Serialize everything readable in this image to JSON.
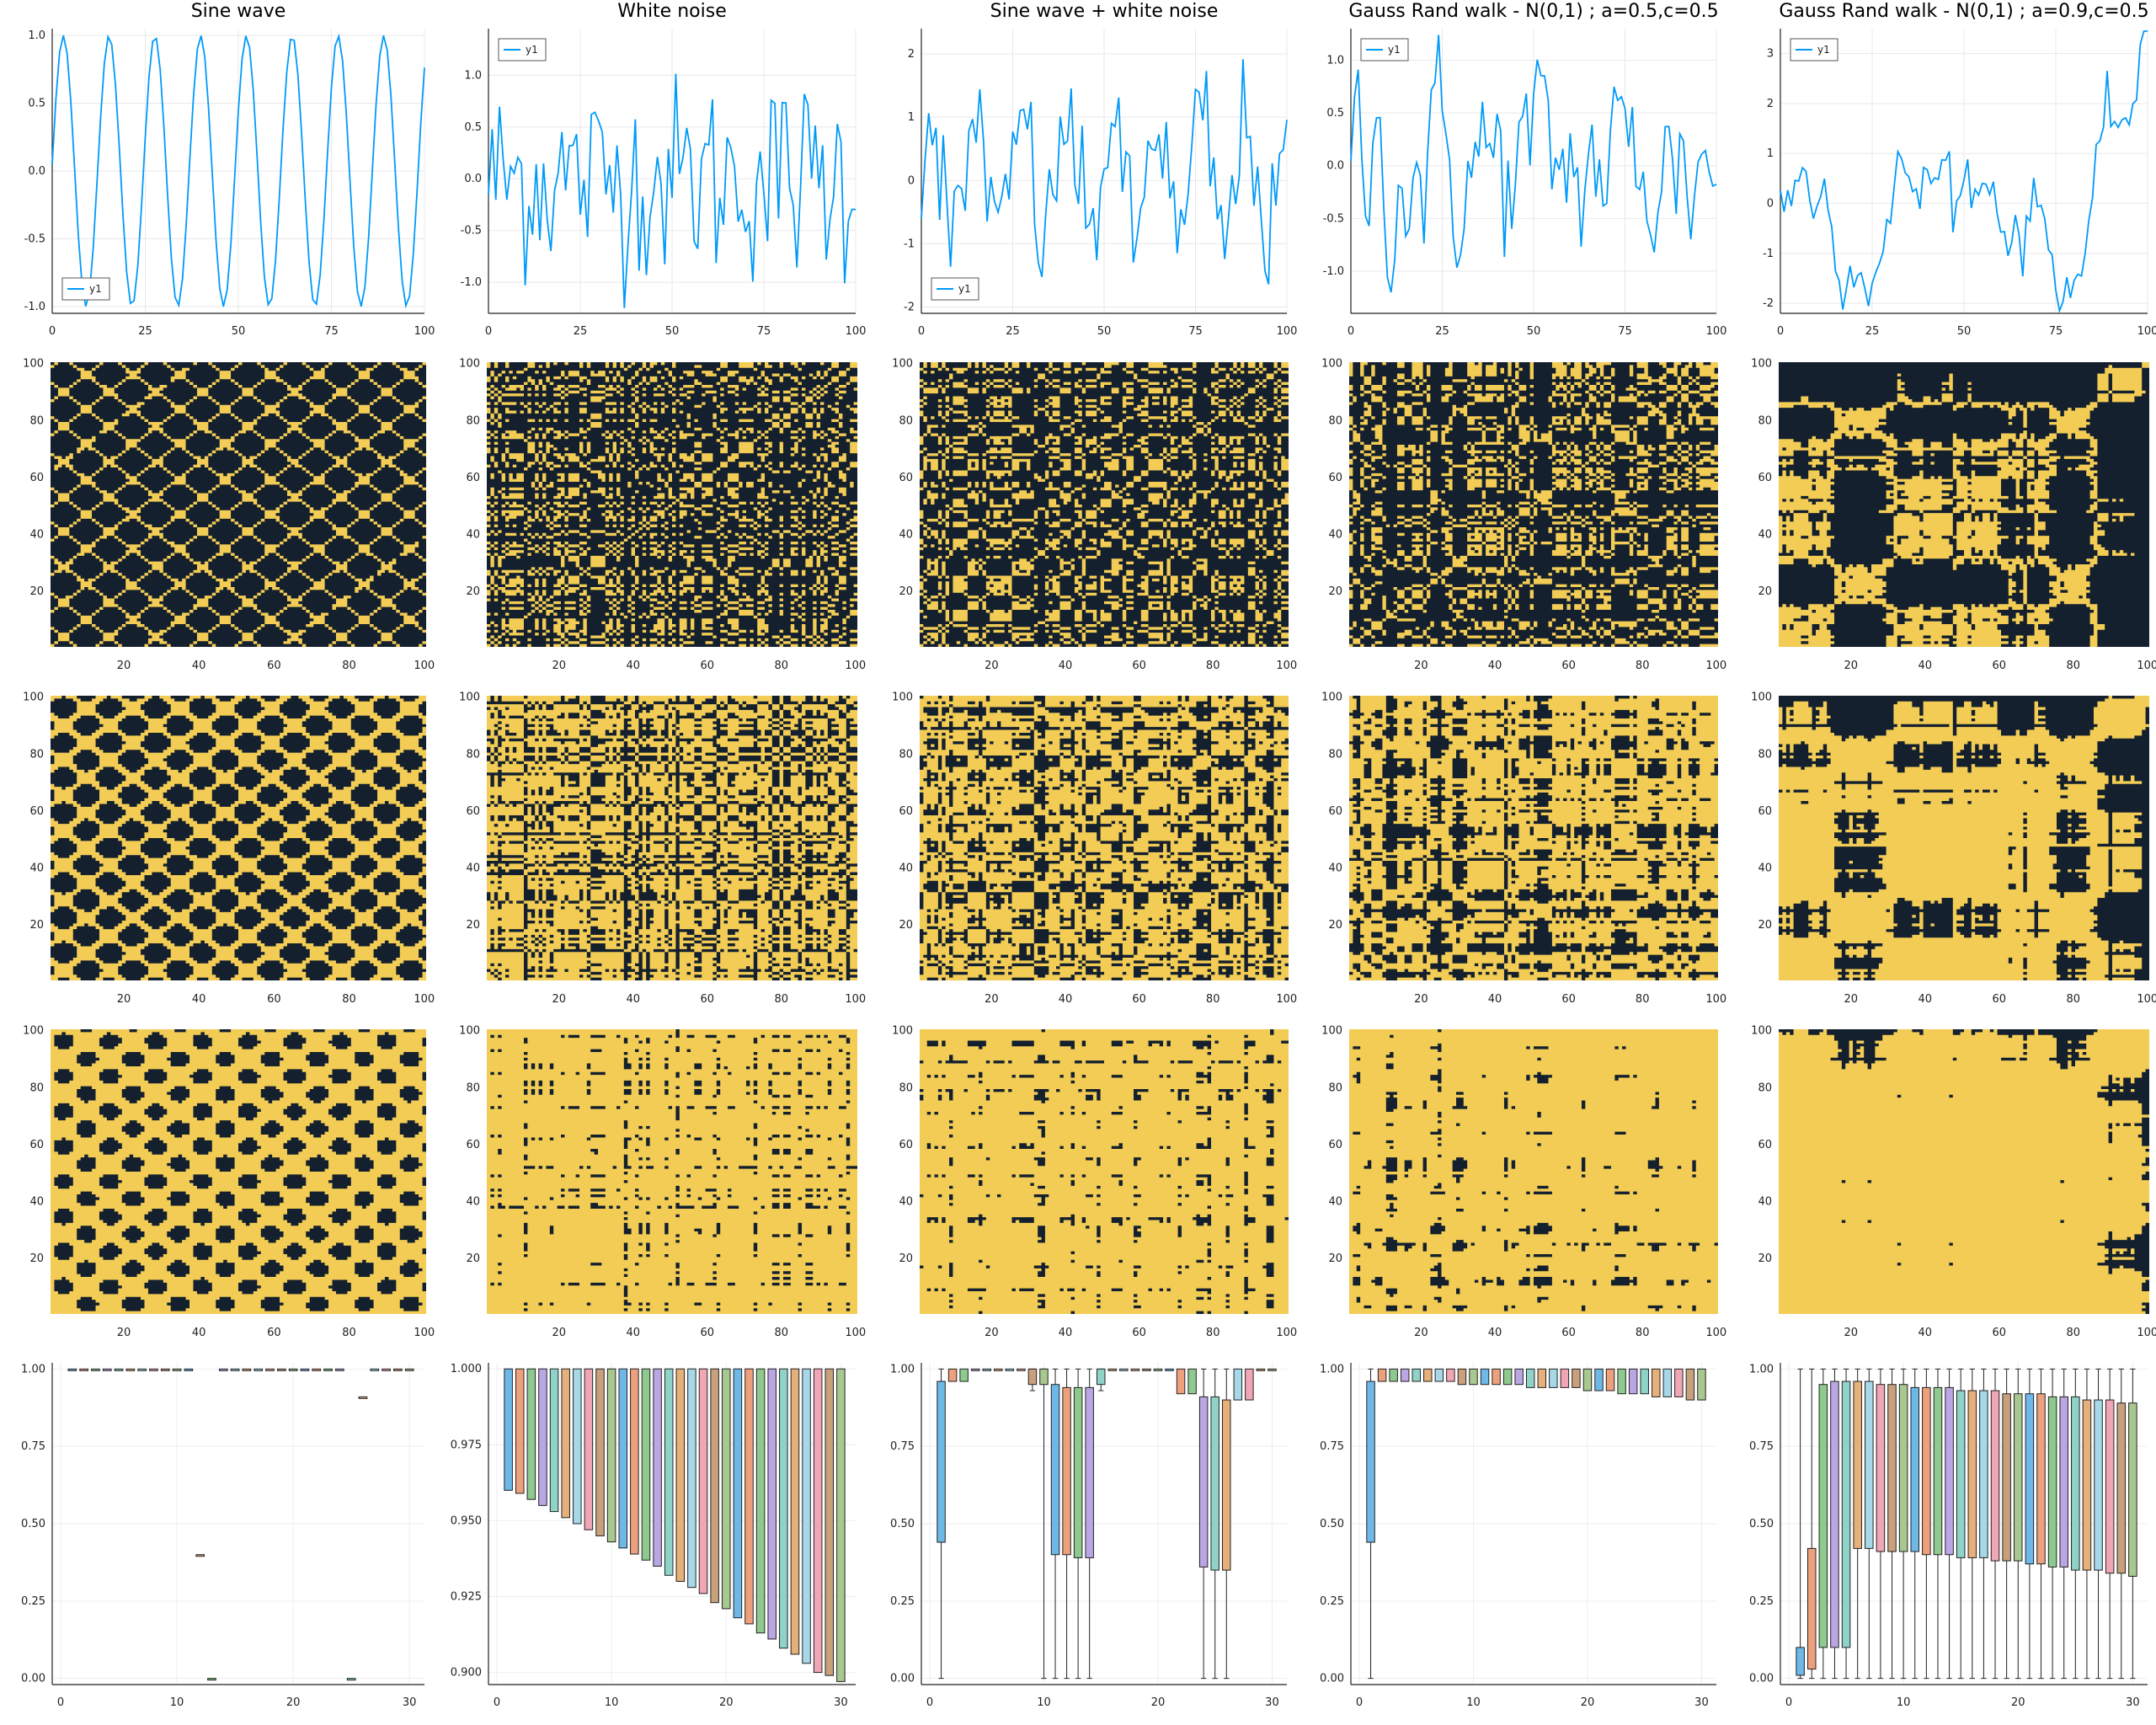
{
  "chart_data": [
    {
      "type": "line",
      "title": "Sine wave",
      "x": [
        0,
        100
      ],
      "ylim": [
        -1.05,
        1.05
      ],
      "xticks": [
        0,
        25,
        50,
        75,
        100
      ],
      "yticks": [
        -1.0,
        -0.5,
        0.0,
        0.5,
        1.0
      ],
      "legend": "bottom-left",
      "series": [
        {
          "name": "y1",
          "color": "#009AFA",
          "kind": "sine",
          "period": 12.3
        }
      ]
    },
    {
      "type": "line",
      "title": "White noise",
      "x": [
        0,
        100
      ],
      "ylim": [
        -1.3,
        1.45
      ],
      "xticks": [
        0,
        25,
        50,
        75,
        100
      ],
      "yticks": [
        -1.0,
        -0.5,
        0.0,
        0.5,
        1.0
      ],
      "legend": "top-left",
      "series": [
        {
          "name": "y1",
          "color": "#009AFA",
          "kind": "noise"
        }
      ]
    },
    {
      "type": "line",
      "title": "Sine wave + white noise",
      "x": [
        0,
        100
      ],
      "ylim": [
        -2.1,
        2.4
      ],
      "xticks": [
        0,
        25,
        50,
        75,
        100
      ],
      "yticks": [
        -2,
        -1,
        0,
        1,
        2
      ],
      "legend": "bottom-left",
      "series": [
        {
          "name": "y1",
          "color": "#009AFA",
          "kind": "sine+noise"
        }
      ]
    },
    {
      "type": "line",
      "title": "Gauss Rand walk - N(0,1) ; a=0.5,c=0.5",
      "x": [
        0,
        100
      ],
      "ylim": [
        -1.4,
        1.3
      ],
      "xticks": [
        0,
        25,
        50,
        75,
        100
      ],
      "yticks": [
        -1.0,
        -0.5,
        0.0,
        0.5,
        1.0
      ],
      "legend": "top-left",
      "series": [
        {
          "name": "y1",
          "color": "#009AFA",
          "kind": "walk05"
        }
      ]
    },
    {
      "type": "line",
      "title": "Gauss Rand walk - N(0,1) ; a=0.9,c=0.5",
      "x": [
        0,
        100
      ],
      "ylim": [
        -2.2,
        3.5
      ],
      "xticks": [
        0,
        25,
        50,
        75,
        100
      ],
      "yticks": [
        -2,
        -1,
        0,
        1,
        2,
        3
      ],
      "legend": "top-left",
      "series": [
        {
          "name": "y1",
          "color": "#009AFA",
          "kind": "walk09"
        }
      ]
    },
    {
      "type": "heatmap",
      "row": 2,
      "xticks": [
        20,
        40,
        60,
        80,
        100
      ],
      "yticks": [
        20,
        40,
        60,
        80,
        100
      ],
      "colors": [
        "#14202E",
        "#F2CC55"
      ]
    },
    {
      "type": "heatmap",
      "row": 3,
      "xticks": [
        20,
        40,
        60,
        80,
        100
      ],
      "yticks": [
        20,
        40,
        60,
        80,
        100
      ],
      "colors": [
        "#14202E",
        "#F2CC55"
      ]
    },
    {
      "type": "heatmap",
      "row": 4,
      "xticks": [
        20,
        40,
        60,
        80,
        100
      ],
      "yticks": [
        20,
        40,
        60,
        80,
        100
      ],
      "colors": [
        "#14202E",
        "#F2CC55"
      ]
    },
    {
      "type": "bar",
      "subtype": "boxplot",
      "panel": "Sine wave",
      "x": [
        0,
        30
      ],
      "xticks": [
        0,
        10,
        20,
        30
      ],
      "yticks": [
        0.0,
        0.25,
        0.5,
        0.75,
        1.0
      ],
      "ylim": [
        -0.02,
        1.02
      ],
      "boxes": [
        [
          0.998,
          1.0
        ],
        [
          0.998,
          1.0
        ],
        [
          0.998,
          1.0
        ],
        [
          0.998,
          1.0
        ],
        [
          0.998,
          1.0
        ],
        [
          0.998,
          1.0
        ],
        [
          0.998,
          1.0
        ],
        [
          0.998,
          1.0
        ],
        [
          0.998,
          1.0
        ],
        [
          0.998,
          1.0
        ],
        [
          0.998,
          1.0
        ],
        [
          0.4,
          0.4
        ],
        [
          0.0,
          0.0
        ],
        [
          0.998,
          1.0
        ],
        [
          0.998,
          1.0
        ],
        [
          0.998,
          1.0
        ],
        [
          0.998,
          1.0
        ],
        [
          0.998,
          1.0
        ],
        [
          0.998,
          1.0
        ],
        [
          0.998,
          1.0
        ],
        [
          0.998,
          1.0
        ],
        [
          0.998,
          1.0
        ],
        [
          0.998,
          1.0
        ],
        [
          0.998,
          1.0
        ],
        [
          0.0,
          0.0
        ],
        [
          0.91,
          0.91
        ],
        [
          0.998,
          1.0
        ],
        [
          0.998,
          1.0
        ],
        [
          0.998,
          1.0
        ],
        [
          0.998,
          1.0
        ]
      ]
    },
    {
      "type": "bar",
      "subtype": "boxplot",
      "panel": "White noise",
      "x": [
        0,
        30
      ],
      "xticks": [
        0,
        10,
        20,
        30
      ],
      "yticks": [
        0.9,
        0.925,
        0.95,
        0.975,
        1.0
      ],
      "ylim": [
        0.896,
        1.002
      ],
      "boxes": [
        [
          0.96,
          1.0
        ],
        [
          0.959,
          1.0
        ],
        [
          0.957,
          1.0
        ],
        [
          0.955,
          1.0
        ],
        [
          0.953,
          1.0
        ],
        [
          0.951,
          1.0
        ],
        [
          0.949,
          1.0
        ],
        [
          0.947,
          1.0
        ],
        [
          0.945,
          1.0
        ],
        [
          0.943,
          1.0
        ],
        [
          0.941,
          1.0
        ],
        [
          0.939,
          1.0
        ],
        [
          0.937,
          1.0
        ],
        [
          0.935,
          1.0
        ],
        [
          0.932,
          1.0
        ],
        [
          0.93,
          1.0
        ],
        [
          0.928,
          1.0
        ],
        [
          0.926,
          1.0
        ],
        [
          0.923,
          1.0
        ],
        [
          0.921,
          1.0
        ],
        [
          0.918,
          1.0
        ],
        [
          0.916,
          1.0
        ],
        [
          0.913,
          1.0
        ],
        [
          0.911,
          1.0
        ],
        [
          0.908,
          1.0
        ],
        [
          0.906,
          1.0
        ],
        [
          0.903,
          1.0
        ],
        [
          0.9,
          1.0
        ],
        [
          0.899,
          1.0
        ],
        [
          0.897,
          1.0
        ]
      ]
    },
    {
      "type": "bar",
      "subtype": "boxplot",
      "panel": "Sine wave + white noise",
      "x": [
        0,
        30
      ],
      "xticks": [
        0,
        10,
        20,
        30
      ],
      "yticks": [
        0.0,
        0.25,
        0.5,
        0.75,
        1.0
      ],
      "ylim": [
        -0.02,
        1.02
      ],
      "boxes": [
        [
          0.44,
          0.96,
          0.0
        ],
        [
          0.96,
          1.0
        ],
        [
          0.96,
          1.0
        ],
        [
          1.0,
          1.0
        ],
        [
          1.0,
          1.0
        ],
        [
          1.0,
          1.0
        ],
        [
          1.0,
          1.0
        ],
        [
          1.0,
          1.0
        ],
        [
          0.95,
          1.0,
          0.93
        ],
        [
          0.95,
          1.0,
          0.0
        ],
        [
          0.4,
          0.95,
          0.0
        ],
        [
          0.4,
          0.94,
          0.0
        ],
        [
          0.39,
          0.94,
          0.0
        ],
        [
          0.39,
          0.94,
          0.0
        ],
        [
          0.95,
          1.0,
          0.93
        ],
        [
          1.0,
          1.0
        ],
        [
          1.0,
          1.0
        ],
        [
          1.0,
          1.0
        ],
        [
          1.0,
          1.0
        ],
        [
          1.0,
          1.0
        ],
        [
          1.0,
          1.0
        ],
        [
          0.92,
          1.0
        ],
        [
          0.92,
          1.0
        ],
        [
          0.36,
          0.91,
          0.0
        ],
        [
          0.35,
          0.91,
          0.0
        ],
        [
          0.35,
          0.9,
          0.0
        ],
        [
          0.9,
          1.0
        ],
        [
          0.9,
          1.0
        ],
        [
          1.0,
          1.0
        ],
        [
          1.0,
          1.0
        ]
      ]
    },
    {
      "type": "bar",
      "subtype": "boxplot",
      "panel": "Gauss Rand walk - N(0,1) ; a=0.5,c=0.5",
      "x": [
        0,
        30
      ],
      "xticks": [
        0,
        10,
        20,
        30
      ],
      "yticks": [
        0.0,
        0.25,
        0.5,
        0.75,
        1.0
      ],
      "ylim": [
        -0.02,
        1.02
      ],
      "boxes": [
        [
          0.44,
          0.96,
          0.0
        ],
        [
          0.96,
          1.0
        ],
        [
          0.96,
          1.0
        ],
        [
          0.96,
          1.0
        ],
        [
          0.96,
          1.0
        ],
        [
          0.96,
          1.0
        ],
        [
          0.96,
          1.0
        ],
        [
          0.96,
          1.0
        ],
        [
          0.95,
          1.0
        ],
        [
          0.95,
          1.0
        ],
        [
          0.95,
          1.0
        ],
        [
          0.95,
          1.0
        ],
        [
          0.95,
          1.0
        ],
        [
          0.95,
          1.0
        ],
        [
          0.94,
          1.0
        ],
        [
          0.94,
          1.0
        ],
        [
          0.94,
          1.0
        ],
        [
          0.94,
          1.0
        ],
        [
          0.94,
          1.0
        ],
        [
          0.93,
          1.0
        ],
        [
          0.93,
          1.0
        ],
        [
          0.93,
          1.0
        ],
        [
          0.92,
          1.0
        ],
        [
          0.92,
          1.0
        ],
        [
          0.92,
          1.0
        ],
        [
          0.91,
          1.0
        ],
        [
          0.91,
          1.0
        ],
        [
          0.91,
          1.0
        ],
        [
          0.9,
          1.0
        ],
        [
          0.9,
          1.0
        ]
      ]
    },
    {
      "type": "bar",
      "subtype": "boxplot",
      "panel": "Gauss Rand walk - N(0,1) ; a=0.9,c=0.5",
      "x": [
        0,
        30
      ],
      "xticks": [
        0,
        10,
        20,
        30
      ],
      "yticks": [
        0.0,
        0.25,
        0.5,
        0.75,
        1.0
      ],
      "ylim": [
        -0.02,
        1.02
      ],
      "boxes": [
        [
          0.01,
          0.1,
          0.0
        ],
        [
          0.03,
          0.42,
          0.0
        ],
        [
          0.1,
          0.95,
          0.0
        ],
        [
          0.1,
          0.96,
          0.0
        ],
        [
          0.1,
          0.96,
          0.0
        ],
        [
          0.42,
          0.96,
          0.0
        ],
        [
          0.42,
          0.96,
          0.0
        ],
        [
          0.41,
          0.95,
          0.0
        ],
        [
          0.41,
          0.95,
          0.0
        ],
        [
          0.41,
          0.95,
          0.0
        ],
        [
          0.41,
          0.94,
          0.0
        ],
        [
          0.4,
          0.94,
          0.0
        ],
        [
          0.4,
          0.94,
          0.0
        ],
        [
          0.4,
          0.94,
          0.0
        ],
        [
          0.39,
          0.93,
          0.0
        ],
        [
          0.39,
          0.93,
          0.0
        ],
        [
          0.39,
          0.93,
          0.0
        ],
        [
          0.38,
          0.93,
          0.0
        ],
        [
          0.38,
          0.92,
          0.0
        ],
        [
          0.38,
          0.92,
          0.0
        ],
        [
          0.37,
          0.92,
          0.0
        ],
        [
          0.37,
          0.92,
          0.0
        ],
        [
          0.36,
          0.91,
          0.0
        ],
        [
          0.36,
          0.91,
          0.0
        ],
        [
          0.35,
          0.91,
          0.0
        ],
        [
          0.35,
          0.9,
          0.0
        ],
        [
          0.35,
          0.9,
          0.0
        ],
        [
          0.34,
          0.9,
          0.0
        ],
        [
          0.34,
          0.89,
          0.0
        ],
        [
          0.33,
          0.89,
          0.0
        ]
      ]
    }
  ],
  "box_palette": [
    "#6DB8E6",
    "#EDA07C",
    "#8EC98E",
    "#B9A6E3",
    "#8FD3C8",
    "#E6B07A",
    "#A6D8E8",
    "#F0A6B4",
    "#C8A07C",
    "#A8C890"
  ],
  "heat_colors": {
    "dark": "#14202E",
    "gold": "#F2CC55"
  }
}
